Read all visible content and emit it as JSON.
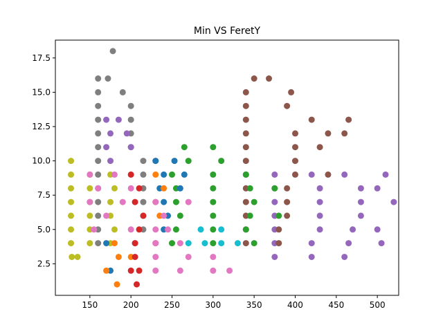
{
  "chart_data": {
    "type": "scatter",
    "title": "Min VS FeretY",
    "xlabel": "",
    "ylabel": "",
    "xlim": [
      108,
      526
    ],
    "ylim": [
      0.2,
      18.8
    ],
    "xticks": [
      150,
      200,
      250,
      300,
      350,
      400,
      450,
      500
    ],
    "yticks": [
      2.5,
      5.0,
      7.5,
      10.0,
      12.5,
      15.0,
      17.5
    ],
    "grid": false,
    "legend": "none",
    "series": [
      {
        "color": "#bcbd22",
        "points": [
          [
            128,
            3
          ],
          [
            135,
            3
          ],
          [
            127,
            4
          ],
          [
            150,
            4
          ],
          [
            175,
            4
          ],
          [
            127,
            5
          ],
          [
            150,
            5
          ],
          [
            180,
            5
          ],
          [
            127,
            6
          ],
          [
            150,
            6
          ],
          [
            175,
            6
          ],
          [
            127,
            7
          ],
          [
            150,
            7
          ],
          [
            175,
            7
          ],
          [
            127,
            8
          ],
          [
            150,
            8
          ],
          [
            180,
            8
          ],
          [
            127,
            9
          ],
          [
            150,
            9
          ],
          [
            175,
            9
          ],
          [
            127,
            10
          ]
        ]
      },
      {
        "color": "#7f7f7f",
        "points": [
          [
            178,
            18
          ],
          [
            160,
            16
          ],
          [
            172,
            16
          ],
          [
            160,
            15
          ],
          [
            190,
            15
          ],
          [
            160,
            14
          ],
          [
            200,
            14
          ],
          [
            160,
            13
          ],
          [
            200,
            13
          ],
          [
            160,
            12
          ],
          [
            200,
            12
          ],
          [
            160,
            11
          ],
          [
            200,
            11
          ],
          [
            160,
            10
          ],
          [
            215,
            10
          ],
          [
            160,
            9
          ],
          [
            215,
            9
          ],
          [
            160,
            8
          ],
          [
            215,
            8
          ],
          [
            160,
            7
          ],
          [
            215,
            7
          ],
          [
            160,
            6
          ],
          [
            215,
            6
          ],
          [
            160,
            5
          ],
          [
            215,
            5
          ],
          [
            160,
            4
          ],
          [
            205,
            4
          ]
        ]
      },
      {
        "color": "#9467bd",
        "points": [
          [
            170,
            13
          ],
          [
            185,
            13
          ],
          [
            175,
            12
          ],
          [
            195,
            12
          ],
          [
            170,
            11
          ],
          [
            200,
            11
          ],
          [
            175,
            10
          ],
          [
            230,
            10
          ],
          [
            375,
            9
          ],
          [
            420,
            9
          ],
          [
            460,
            9
          ],
          [
            510,
            9
          ],
          [
            375,
            8
          ],
          [
            430,
            8
          ],
          [
            480,
            8
          ],
          [
            500,
            8
          ],
          [
            375,
            7
          ],
          [
            430,
            7
          ],
          [
            480,
            7
          ],
          [
            520,
            7
          ],
          [
            375,
            6
          ],
          [
            430,
            6
          ],
          [
            480,
            6
          ],
          [
            375,
            5
          ],
          [
            430,
            5
          ],
          [
            470,
            5
          ],
          [
            500,
            5
          ],
          [
            375,
            4
          ],
          [
            420,
            4
          ],
          [
            465,
            4
          ],
          [
            505,
            4
          ],
          [
            375,
            3
          ],
          [
            420,
            3
          ],
          [
            460,
            3
          ]
        ]
      },
      {
        "color": "#8c564b",
        "points": [
          [
            350,
            16
          ],
          [
            368,
            16
          ],
          [
            340,
            15
          ],
          [
            395,
            15
          ],
          [
            340,
            14
          ],
          [
            390,
            14
          ],
          [
            340,
            13
          ],
          [
            420,
            13
          ],
          [
            465,
            13
          ],
          [
            340,
            12
          ],
          [
            400,
            12
          ],
          [
            440,
            12
          ],
          [
            460,
            12
          ],
          [
            340,
            11
          ],
          [
            400,
            11
          ],
          [
            430,
            11
          ],
          [
            340,
            10
          ],
          [
            400,
            10
          ],
          [
            340,
            9
          ],
          [
            400,
            9
          ],
          [
            440,
            9
          ],
          [
            340,
            8
          ],
          [
            390,
            8
          ],
          [
            340,
            7
          ],
          [
            390,
            7
          ],
          [
            340,
            6
          ],
          [
            390,
            6
          ],
          [
            340,
            5
          ],
          [
            380,
            5
          ],
          [
            340,
            4
          ],
          [
            380,
            4
          ]
        ]
      },
      {
        "color": "#2ca02c",
        "points": [
          [
            265,
            11
          ],
          [
            300,
            11
          ],
          [
            270,
            10
          ],
          [
            310,
            10
          ],
          [
            250,
            9
          ],
          [
            300,
            9
          ],
          [
            340,
            9
          ],
          [
            255,
            8
          ],
          [
            300,
            8
          ],
          [
            345,
            8
          ],
          [
            255,
            7
          ],
          [
            300,
            7
          ],
          [
            350,
            7
          ],
          [
            260,
            6
          ],
          [
            300,
            6
          ],
          [
            345,
            6
          ],
          [
            255,
            5
          ],
          [
            300,
            5
          ],
          [
            340,
            5
          ],
          [
            250,
            4
          ],
          [
            300,
            4
          ],
          [
            350,
            4
          ],
          [
            375,
            8
          ],
          [
            380,
            6
          ]
        ]
      },
      {
        "color": "#1f77b4",
        "points": [
          [
            230,
            10
          ],
          [
            253,
            10
          ],
          [
            240,
            9
          ],
          [
            265,
            9
          ],
          [
            235,
            8
          ],
          [
            260,
            8
          ],
          [
            240,
            7
          ],
          [
            245,
            6
          ],
          [
            240,
            5
          ],
          [
            170,
            4
          ],
          [
            175,
            2
          ]
        ]
      },
      {
        "color": "#ff7f0e",
        "points": [
          [
            230,
            9
          ],
          [
            240,
            8
          ],
          [
            230,
            7
          ],
          [
            235,
            6
          ],
          [
            180,
            4
          ],
          [
            185,
            3
          ],
          [
            200,
            3
          ],
          [
            183,
            1
          ],
          [
            170,
            2
          ]
        ]
      },
      {
        "color": "#d62728",
        "points": [
          [
            200,
            9
          ],
          [
            210,
            8
          ],
          [
            205,
            7
          ],
          [
            215,
            6
          ],
          [
            210,
            5
          ],
          [
            205,
            4
          ],
          [
            230,
            4
          ],
          [
            205,
            3
          ],
          [
            200,
            2
          ],
          [
            210,
            2
          ],
          [
            207,
            1
          ]
        ]
      },
      {
        "color": "#e377c2",
        "points": [
          [
            150,
            9
          ],
          [
            180,
            9
          ],
          [
            160,
            8
          ],
          [
            200,
            8
          ],
          [
            150,
            7
          ],
          [
            190,
            7
          ],
          [
            230,
            7
          ],
          [
            270,
            7
          ],
          [
            170,
            6
          ],
          [
            240,
            6
          ],
          [
            155,
            5
          ],
          [
            200,
            5
          ],
          [
            230,
            5
          ],
          [
            245,
            5
          ],
          [
            230,
            4
          ],
          [
            260,
            4
          ],
          [
            230,
            3
          ],
          [
            270,
            3
          ],
          [
            300,
            3
          ],
          [
            230,
            2
          ],
          [
            260,
            2
          ],
          [
            300,
            2
          ],
          [
            320,
            2
          ]
        ]
      },
      {
        "color": "#17becf",
        "points": [
          [
            270,
            4
          ],
          [
            290,
            4
          ],
          [
            310,
            4
          ],
          [
            330,
            4
          ],
          [
            285,
            5
          ],
          [
            310,
            5
          ]
        ]
      }
    ]
  }
}
